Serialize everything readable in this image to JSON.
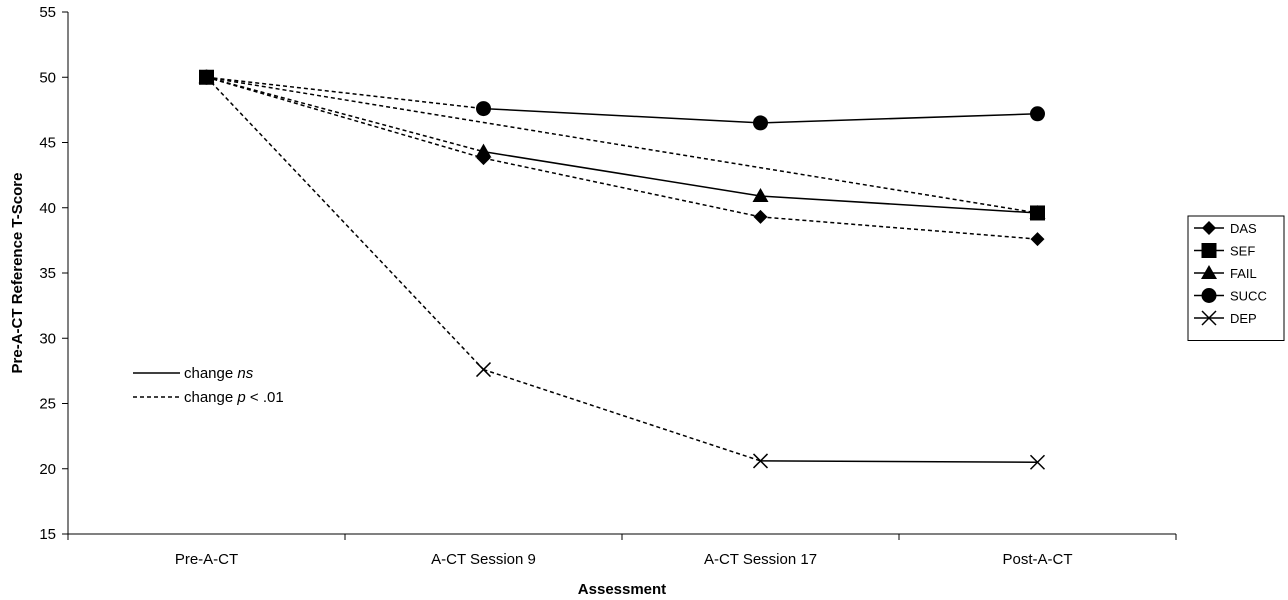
{
  "chart_data": {
    "type": "line",
    "title": "",
    "xlabel": "Assessment",
    "ylabel": "Pre-A-CT Reference T-Score",
    "ylim": [
      15,
      55
    ],
    "yticks": [
      15,
      20,
      25,
      30,
      35,
      40,
      45,
      50,
      55
    ],
    "categories": [
      "Pre-A-CT",
      "A-CT Session 9",
      "A-CT Session 17",
      "Post-A-CT"
    ],
    "grid": false,
    "legend_position": "right",
    "series": [
      {
        "name": "DAS",
        "marker": "diamond",
        "values": [
          50,
          43.8,
          39.3,
          37.6
        ],
        "segment_styles": [
          "dashed",
          "dashed",
          "dashed"
        ]
      },
      {
        "name": "SEF",
        "marker": "square",
        "values": [
          50,
          null,
          null,
          39.6
        ],
        "segment_styles": [
          "dashed"
        ]
      },
      {
        "name": "FAIL",
        "marker": "triangle",
        "values": [
          50,
          44.3,
          40.9,
          39.6
        ],
        "segment_styles": [
          "dashed",
          "solid",
          "solid"
        ]
      },
      {
        "name": "SUCC",
        "marker": "circle",
        "values": [
          50,
          47.6,
          46.5,
          47.2
        ],
        "segment_styles": [
          "dashed",
          "solid",
          "solid"
        ]
      },
      {
        "name": "DEP",
        "marker": "x",
        "values": [
          50,
          27.6,
          20.6,
          20.5
        ],
        "segment_styles": [
          "dashed",
          "dashed",
          "solid"
        ]
      }
    ],
    "line_style_key": {
      "solid": {
        "prefix": "change ",
        "italic": "ns",
        "suffix": ""
      },
      "dashed": {
        "prefix": "change ",
        "italic": "p",
        "suffix": "  < .01"
      }
    }
  }
}
